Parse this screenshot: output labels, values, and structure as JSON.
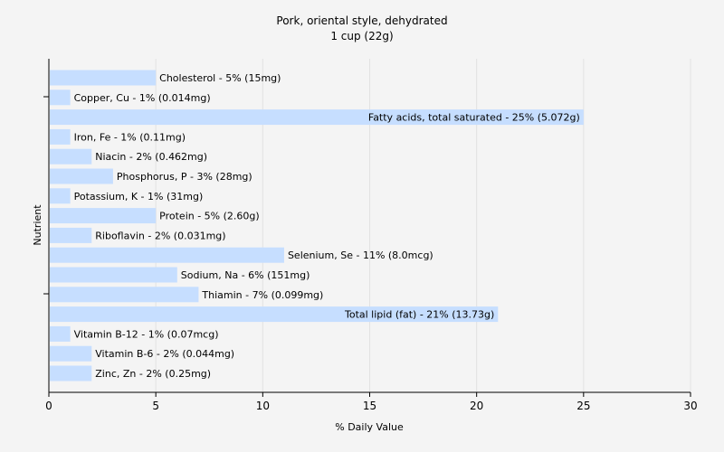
{
  "chart_data": {
    "type": "bar",
    "orientation": "horizontal",
    "title": "Pork, oriental style, dehydrated",
    "subtitle": "1 cup (22g)",
    "xlabel": "% Daily Value",
    "ylabel": "Nutrient",
    "xlim": [
      0,
      30
    ],
    "xticks": [
      0,
      5,
      10,
      15,
      20,
      25,
      30
    ],
    "grid": true,
    "bar_color": "#c6deff",
    "categories": [
      "Cholesterol - 5% (15mg)",
      "Copper, Cu - 1% (0.014mg)",
      "Fatty acids, total saturated - 25% (5.072g)",
      "Iron, Fe - 1% (0.11mg)",
      "Niacin - 2% (0.462mg)",
      "Phosphorus, P - 3% (28mg)",
      "Potassium, K - 1% (31mg)",
      "Protein - 5% (2.60g)",
      "Riboflavin - 2% (0.031mg)",
      "Selenium, Se - 11% (8.0mcg)",
      "Sodium, Na - 6% (151mg)",
      "Thiamin - 7% (0.099mg)",
      "Total lipid (fat) - 21% (13.73g)",
      "Vitamin B-12 - 1% (0.07mcg)",
      "Vitamin B-6 - 2% (0.044mg)",
      "Zinc, Zn - 2% (0.25mg)"
    ],
    "values": [
      5,
      1,
      25,
      1,
      2,
      3,
      1,
      5,
      2,
      11,
      6,
      7,
      21,
      1,
      2,
      2
    ]
  }
}
